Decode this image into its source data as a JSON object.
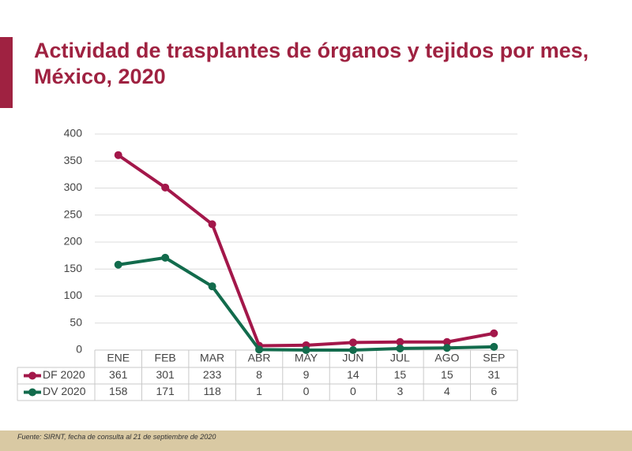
{
  "chart_data": {
    "type": "line",
    "title": "Actividad de trasplantes de órganos y tejidos por mes, México, 2020",
    "categories": [
      "ENE",
      "FEB",
      "MAR",
      "ABR",
      "MAY",
      "JUN",
      "JUL",
      "AGO",
      "SEP"
    ],
    "series": [
      {
        "name": "DF 2020",
        "color": "#a3174a",
        "values": [
          361,
          301,
          233,
          8,
          9,
          14,
          15,
          15,
          31
        ]
      },
      {
        "name": "DV 2020",
        "color": "#126b4c",
        "values": [
          158,
          171,
          118,
          1,
          0,
          0,
          3,
          4,
          6
        ]
      }
    ],
    "ylim": [
      0,
      400
    ],
    "yticks": [
      0,
      50,
      100,
      150,
      200,
      250,
      300,
      350,
      400
    ],
    "grid": true,
    "source": "Fuente: SIRNT, fecha de consulta al 21 de septiembre de 2020"
  }
}
